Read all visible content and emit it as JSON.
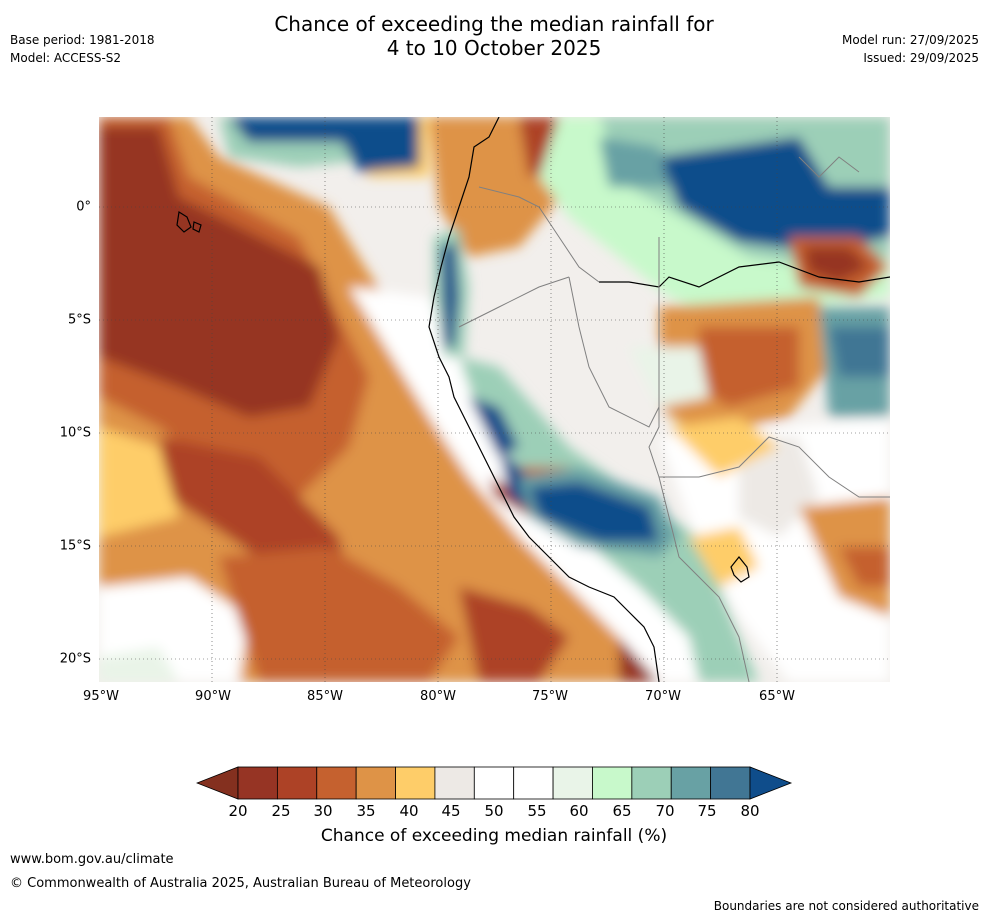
{
  "header": {
    "base_period": "Base period: 1981-2018",
    "model": "Model: ACCESS-S2",
    "title_line1": "Chance of exceeding the median rainfall for",
    "title_line2": "4 to 10 October 2025",
    "model_run": "Model run: 27/09/2025",
    "issued": "Issued: 29/09/2025"
  },
  "map": {
    "x_labels": [
      "95°W",
      "90°W",
      "85°W",
      "80°W",
      "75°W",
      "70°W",
      "65°W"
    ],
    "y_labels": [
      "0°",
      "5°S",
      "10°S",
      "15°S",
      "20°S"
    ]
  },
  "colorbar": {
    "ticks": [
      "20",
      "25",
      "30",
      "35",
      "40",
      "45",
      "50",
      "55",
      "60",
      "65",
      "70",
      "75",
      "80"
    ],
    "colors": [
      "#963424",
      "#ad4226",
      "#c5612f",
      "#de9347",
      "#fecd69",
      "#ede9e5",
      "#ffffff",
      "#ffffff",
      "#e9f4e8",
      "#c8f9cb",
      "#9ccfb7",
      "#68a1a4",
      "#417694"
    ],
    "low_end_color": "#84301f",
    "high_end_color": "#0f4d8b",
    "title": "Chance of exceeding median rainfall (%)"
  },
  "footer": {
    "website": "www.bom.gov.au/climate",
    "copyright": "© Commonwealth of Australia 2025, Australian Bureau of Meteorology",
    "disclaimer": "Boundaries are not considered authoritative"
  }
}
